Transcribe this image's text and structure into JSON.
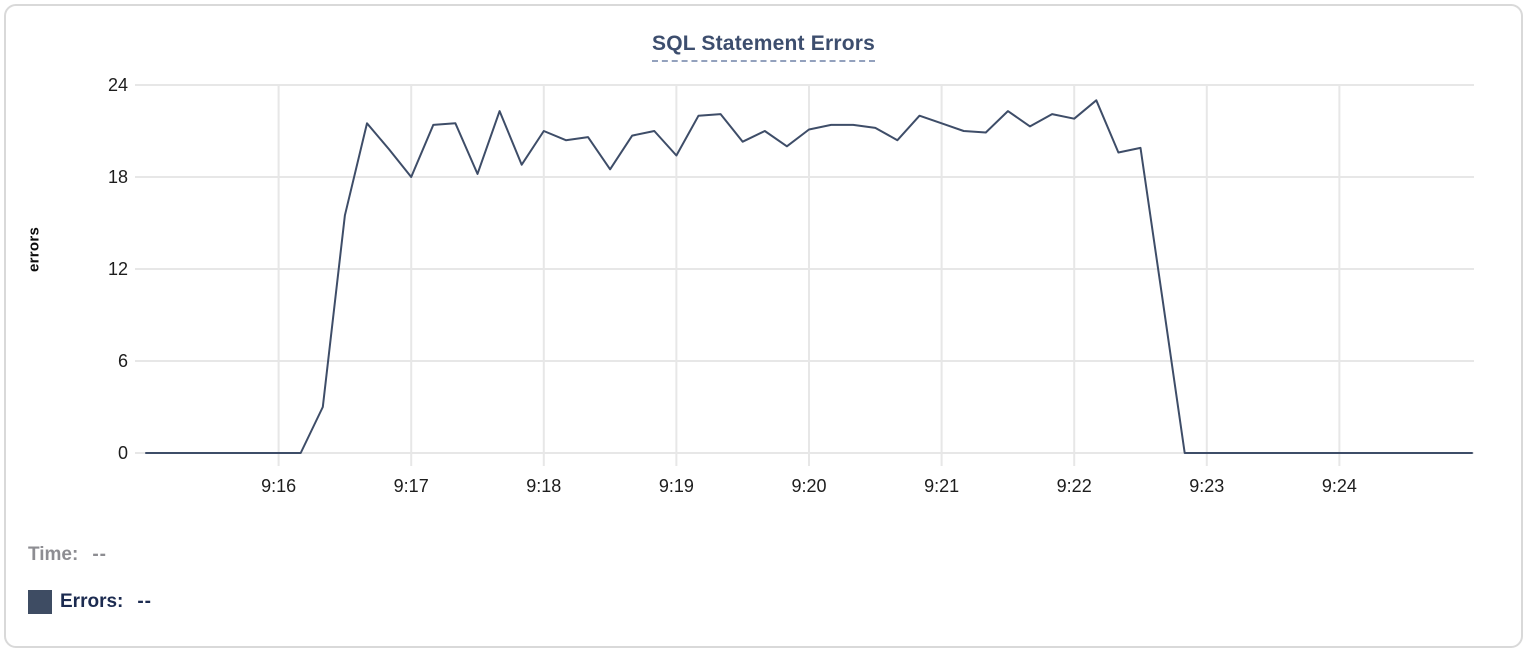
{
  "chart": {
    "title": "SQL Statement Errors",
    "y_axis_title": "errors"
  },
  "legend": {
    "time_label": "Time:",
    "time_value": "--",
    "errors_label": "Errors:",
    "errors_value": "--",
    "swatch_color": "#3e4c63"
  },
  "colors": {
    "line": "#3e4d68",
    "grid": "#e7e7e7",
    "tick_text": "#1d1d1d",
    "title": "#3d4e6e",
    "title_underline": "#93a1bd",
    "legend_gray": "#8d8d92",
    "legend_navy": "#1c2b50",
    "card_border": "#d9d9d9"
  },
  "chart_data": {
    "type": "line",
    "title": "SQL Statement Errors",
    "xlabel": "",
    "ylabel": "errors",
    "ylim": [
      0,
      24
    ],
    "y_ticks": [
      0,
      6,
      12,
      18,
      24
    ],
    "x_tick_labels": [
      "9:16",
      "9:17",
      "9:18",
      "9:19",
      "9:20",
      "9:21",
      "9:22",
      "9:23",
      "9:24"
    ],
    "grid": true,
    "legend_position": "bottom-left",
    "sample_interval_seconds": 10,
    "x": [
      "9:15:00",
      "9:15:10",
      "9:15:20",
      "9:15:30",
      "9:15:40",
      "9:15:50",
      "9:16:00",
      "9:16:10",
      "9:16:20",
      "9:16:30",
      "9:16:40",
      "9:16:50",
      "9:17:00",
      "9:17:10",
      "9:17:20",
      "9:17:30",
      "9:17:40",
      "9:17:50",
      "9:18:00",
      "9:18:10",
      "9:18:20",
      "9:18:30",
      "9:18:40",
      "9:18:50",
      "9:19:00",
      "9:19:10",
      "9:19:20",
      "9:19:30",
      "9:19:40",
      "9:19:50",
      "9:20:00",
      "9:20:10",
      "9:20:20",
      "9:20:30",
      "9:20:40",
      "9:20:50",
      "9:21:00",
      "9:21:10",
      "9:21:20",
      "9:21:30",
      "9:21:40",
      "9:21:50",
      "9:22:00",
      "9:22:10",
      "9:22:20",
      "9:22:30",
      "9:22:40",
      "9:22:50",
      "9:23:00",
      "9:23:10",
      "9:23:20",
      "9:23:30",
      "9:23:40",
      "9:23:50",
      "9:24:00",
      "9:24:10",
      "9:24:20",
      "9:24:30",
      "9:24:40",
      "9:24:50",
      "9:25:00"
    ],
    "series": [
      {
        "name": "Errors",
        "color": "#3e4d68",
        "values": [
          0,
          0,
          0,
          0,
          0,
          0,
          0,
          0,
          3,
          15.5,
          21.5,
          19.8,
          18,
          21.4,
          21.5,
          18.2,
          22.3,
          18.8,
          21,
          20.4,
          20.6,
          18.5,
          20.7,
          21,
          19.4,
          22,
          22.1,
          20.3,
          21,
          20,
          21.1,
          21.4,
          21.4,
          21.2,
          20.4,
          22,
          21.5,
          21,
          20.9,
          22.3,
          21.3,
          22.1,
          21.8,
          23,
          19.6,
          19.9,
          10,
          0,
          0,
          0,
          0,
          0,
          0,
          0,
          0,
          0,
          0,
          0,
          0,
          0,
          0
        ]
      }
    ]
  }
}
